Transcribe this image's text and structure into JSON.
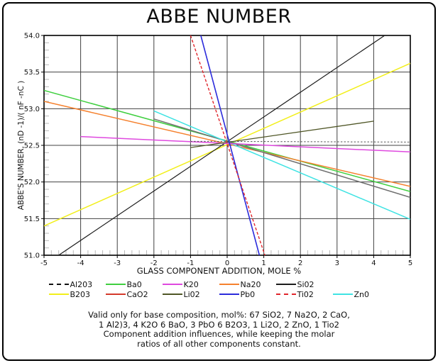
{
  "chart_data": {
    "type": "line",
    "title": "ABBE NUMBER",
    "xlabel": "GLASS COMPONENT ADDITION, MOLE %",
    "ylabel": "ABBE'S NUMBER, (nD -1)/( nF -nC )",
    "xlim": [
      -5,
      5
    ],
    "ylim": [
      51.0,
      54.0
    ],
    "grid": true,
    "grid_color": "#424242",
    "x_minor_step": 0.2,
    "y_minor_step": 0.1,
    "x_ticks": {
      "values": [
        -5,
        -4,
        -3,
        -2,
        -1,
        0,
        1,
        2,
        3,
        4,
        5
      ],
      "labels": [
        "-5",
        "-4",
        "-3",
        "-2",
        "-1",
        "0",
        "1",
        "2",
        "3",
        "4",
        "5"
      ]
    },
    "y_ticks": {
      "values": [
        51.0,
        51.5,
        52.0,
        52.5,
        53.0,
        53.5,
        54.0
      ],
      "labels": [
        "51.0",
        "51.5",
        "52.0",
        "52.5",
        "53.0",
        "53.5",
        "54.0"
      ]
    },
    "convergence_point": {
      "x": 0,
      "y": 52.55
    },
    "series": [
      {
        "name": "B203",
        "color": "#f2ef1a",
        "width": 1.5,
        "x": [
          -5,
          5
        ],
        "y": [
          51.4,
          53.62
        ]
      },
      {
        "name": "Si02",
        "color": "#1c1c1c",
        "width": 1.2,
        "x": [
          -4.6,
          4.3
        ],
        "y": [
          51.0,
          54.0
        ]
      },
      {
        "name": "Ba0",
        "color": "#3fcf3f",
        "width": 1.5,
        "x": [
          -5,
          5
        ],
        "y": [
          53.25,
          51.87
        ]
      },
      {
        "name": "Na20",
        "color": "#f5812e",
        "width": 1.5,
        "x": [
          -5,
          5
        ],
        "y": [
          53.1,
          51.94
        ]
      },
      {
        "name": "CaO2",
        "color": "#6f6f6f",
        "legend_color": "#d4392b",
        "width": 1.5,
        "x": [
          -2,
          5
        ],
        "y": [
          52.86,
          51.79
        ]
      },
      {
        "name": "Zn0",
        "color": "#3fe3e3",
        "width": 1.5,
        "x": [
          -2,
          5
        ],
        "y": [
          52.97,
          51.49
        ]
      },
      {
        "name": "K20",
        "color": "#df49df",
        "width": 1.5,
        "x": [
          -4,
          5
        ],
        "y": [
          52.62,
          52.41
        ]
      },
      {
        "name": "Li02",
        "color": "#4f5626",
        "width": 1.3,
        "x": [
          -1,
          4.0
        ],
        "y": [
          52.47,
          52.83
        ]
      },
      {
        "name": "Al203",
        "color": "#555555",
        "legend_color": "#111111",
        "width": 1.0,
        "dash": "2.5,2.2",
        "x": [
          -1,
          5
        ],
        "y": [
          52.555,
          52.545
        ]
      },
      {
        "name": "Pb0",
        "color": "#2c2cdb",
        "width": 1.6,
        "x": [
          -0.72,
          0.88
        ],
        "y": [
          54.0,
          51.0
        ]
      },
      {
        "name": "Ti02",
        "color": "#e0262c",
        "width": 1.4,
        "dash": "4,2.5",
        "x": [
          -1,
          1.03
        ],
        "y": [
          54.0,
          51.0
        ]
      }
    ]
  },
  "legend": {
    "rows": [
      [
        "Al203",
        "Ba0",
        "K20",
        "Na20",
        "Si02"
      ],
      [
        "B203",
        "CaO2",
        "Li02",
        "Pb0",
        "Ti02",
        "Zn0"
      ]
    ]
  },
  "footer": {
    "lines": [
      "Valid only for base composition, mol%: 67 SiO2, 7 Na2O, 2 CaO,",
      "1 Al2)3, 4 K2O 6 BaO, 3 PbO 6 B2O3, 1 Li2O, 2 ZnO, 1 Tio2",
      "Component addition influences, while keeping the molar",
      "ratios of all other components constant."
    ]
  }
}
